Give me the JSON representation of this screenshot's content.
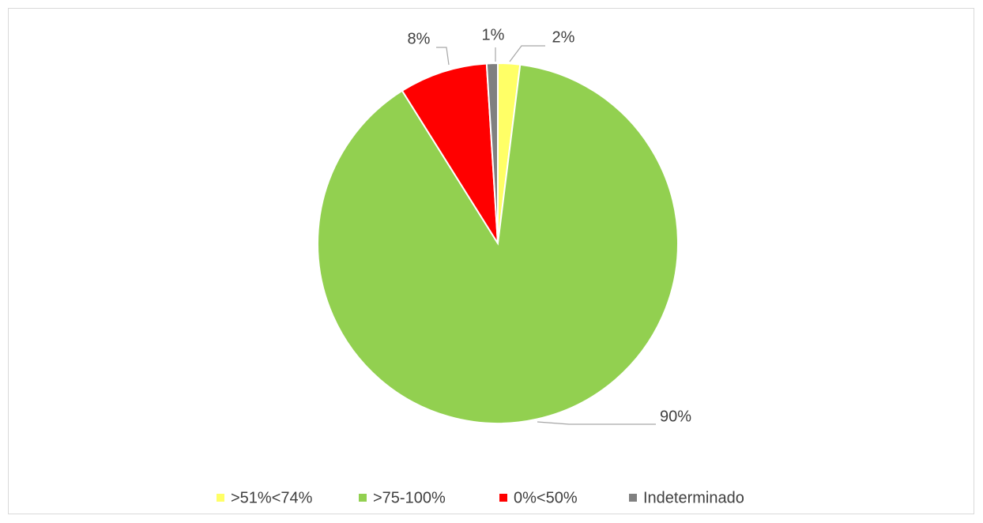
{
  "chart_data": {
    "type": "pie",
    "categories": [
      ">51%<74%",
      ">75-100%",
      "0%<50%",
      "Indeterminado"
    ],
    "values": [
      2,
      90,
      8,
      1
    ],
    "value_labels": [
      "2%",
      "90%",
      "8%",
      "1%"
    ],
    "colors": [
      "#ffff66",
      "#92d050",
      "#ff0000",
      "#808080"
    ],
    "legend": "bottom"
  }
}
